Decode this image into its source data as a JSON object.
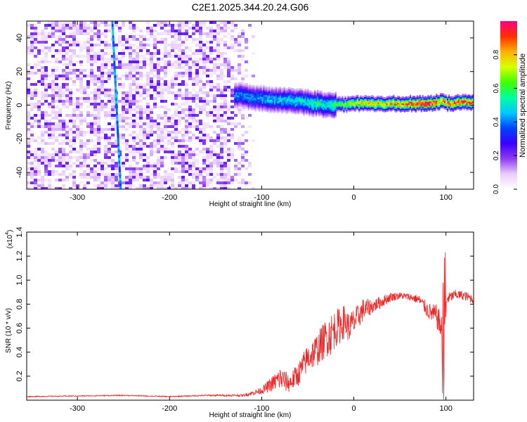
{
  "title": "C2E1.2025.344.20.24.G06",
  "chart_data": [
    {
      "type": "heatmap",
      "title": "C2E1.2025.344.20.24.G06",
      "xlabel": "Height of straight line (km)",
      "ylabel": "Frequency (Hz)",
      "xlim": [
        -355,
        130
      ],
      "ylim": [
        -50,
        50
      ],
      "xticks": [
        -300,
        -200,
        -100,
        0,
        100
      ],
      "yticks": [
        -40,
        -20,
        0,
        20,
        40
      ],
      "colorbar": {
        "label": "Normalized spectral amplitude",
        "range": [
          0,
          1
        ],
        "ticks": [
          0.0,
          0.2,
          0.4,
          0.6,
          0.8
        ],
        "tick_labels": [
          "0.0",
          "0.2",
          "0.4",
          "0.6",
          "0.8"
        ],
        "colormap": [
          "#ffffff",
          "#e8ccff",
          "#8c3cf0",
          "#3a00ff",
          "#0044ff",
          "#00c8ff",
          "#00ffa0",
          "#40ff00",
          "#d8ff00",
          "#ffb000",
          "#ff3000",
          "#ff0080"
        ]
      },
      "features": [
        {
          "kind": "noise",
          "x_range": [
            -355,
            -110
          ],
          "y_range": [
            -50,
            50
          ],
          "level": 0.2
        },
        {
          "kind": "streak",
          "x": [
            -262,
            -253
          ],
          "y": [
            50,
            -50
          ],
          "level": 0.35
        },
        {
          "kind": "signal_band",
          "x": [
            -130,
            -100,
            -80,
            -60,
            -40,
            -30,
            -20,
            0,
            20,
            50,
            80,
            95,
            100,
            130
          ],
          "y": [
            6,
            4,
            3,
            2,
            1,
            0,
            0,
            1,
            1,
            1,
            1,
            2,
            1,
            2
          ],
          "level": [
            0.35,
            0.4,
            0.42,
            0.45,
            0.5,
            0.45,
            0.55,
            0.7,
            0.75,
            0.8,
            0.95,
            0.8,
            0.85,
            0.9
          ]
        }
      ]
    },
    {
      "type": "line",
      "xlabel": "Height of straight line (km)",
      "ylabel": "SNR (10 * v/v)",
      "scale_note": "(x10",
      "scale_exp": "4",
      "xlim": [
        -355,
        130
      ],
      "ylim": [
        0,
        1.4
      ],
      "xticks": [
        -300,
        -200,
        -100,
        0,
        100
      ],
      "yticks": [
        0.2,
        0.4,
        0.6,
        0.8,
        1.0,
        1.2,
        1.4
      ],
      "ytick_labels": [
        "0.2",
        "0.4",
        "0.6",
        "0.8",
        "1.0",
        "1.2",
        "1.4"
      ],
      "series": [
        {
          "color": "#ee2222",
          "x": [
            -355,
            -300,
            -250,
            -200,
            -160,
            -120,
            -100,
            -90,
            -80,
            -70,
            -60,
            -50,
            -40,
            -30,
            -25,
            -20,
            -15,
            -10,
            -5,
            0,
            5,
            10,
            20,
            30,
            40,
            50,
            60,
            70,
            75,
            80,
            85,
            90,
            95,
            97,
            99,
            101,
            103,
            110,
            120,
            130
          ],
          "y": [
            0.03,
            0.035,
            0.04,
            0.03,
            0.04,
            0.04,
            0.08,
            0.13,
            0.18,
            0.14,
            0.22,
            0.35,
            0.42,
            0.52,
            0.55,
            0.6,
            0.62,
            0.66,
            0.6,
            0.65,
            0.7,
            0.75,
            0.78,
            0.82,
            0.86,
            0.87,
            0.86,
            0.84,
            0.8,
            0.75,
            0.72,
            0.7,
            0.6,
            0.2,
            0.5,
            0.85,
            0.85,
            0.88,
            0.87,
            0.84
          ],
          "jitter": [
            0.004,
            0.004,
            0.004,
            0.004,
            0.006,
            0.01,
            0.03,
            0.06,
            0.1,
            0.08,
            0.1,
            0.12,
            0.14,
            0.16,
            0.18,
            0.16,
            0.15,
            0.14,
            0.12,
            0.12,
            0.1,
            0.1,
            0.06,
            0.05,
            0.04,
            0.03,
            0.03,
            0.04,
            0.05,
            0.07,
            0.08,
            0.1,
            0.12,
            0.3,
            0.35,
            0.06,
            0.05,
            0.04,
            0.04,
            0.04
          ]
        }
      ]
    }
  ]
}
